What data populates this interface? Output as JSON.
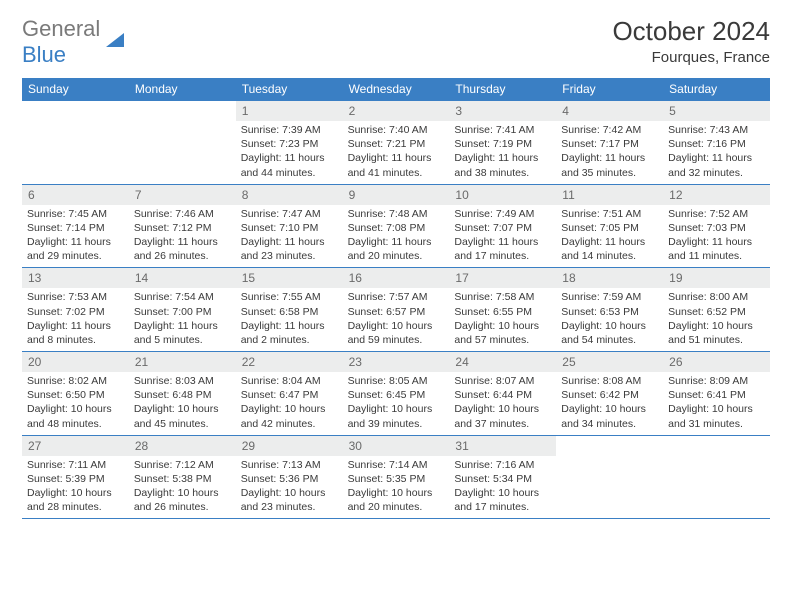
{
  "brand": {
    "text_a": "General",
    "text_b": "Blue"
  },
  "title": "October 2024",
  "location": "Fourques, France",
  "colors": {
    "header_bg": "#3a7fc4",
    "header_text": "#ffffff",
    "daynum_bg": "#eceded",
    "daynum_text": "#6a6a6a",
    "rule": "#3a7fc4"
  },
  "day_names": [
    "Sunday",
    "Monday",
    "Tuesday",
    "Wednesday",
    "Thursday",
    "Friday",
    "Saturday"
  ],
  "weeks": [
    [
      null,
      null,
      {
        "n": "1",
        "sunrise": "Sunrise: 7:39 AM",
        "sunset": "Sunset: 7:23 PM",
        "day": "Daylight: 11 hours and 44 minutes."
      },
      {
        "n": "2",
        "sunrise": "Sunrise: 7:40 AM",
        "sunset": "Sunset: 7:21 PM",
        "day": "Daylight: 11 hours and 41 minutes."
      },
      {
        "n": "3",
        "sunrise": "Sunrise: 7:41 AM",
        "sunset": "Sunset: 7:19 PM",
        "day": "Daylight: 11 hours and 38 minutes."
      },
      {
        "n": "4",
        "sunrise": "Sunrise: 7:42 AM",
        "sunset": "Sunset: 7:17 PM",
        "day": "Daylight: 11 hours and 35 minutes."
      },
      {
        "n": "5",
        "sunrise": "Sunrise: 7:43 AM",
        "sunset": "Sunset: 7:16 PM",
        "day": "Daylight: 11 hours and 32 minutes."
      }
    ],
    [
      {
        "n": "6",
        "sunrise": "Sunrise: 7:45 AM",
        "sunset": "Sunset: 7:14 PM",
        "day": "Daylight: 11 hours and 29 minutes."
      },
      {
        "n": "7",
        "sunrise": "Sunrise: 7:46 AM",
        "sunset": "Sunset: 7:12 PM",
        "day": "Daylight: 11 hours and 26 minutes."
      },
      {
        "n": "8",
        "sunrise": "Sunrise: 7:47 AM",
        "sunset": "Sunset: 7:10 PM",
        "day": "Daylight: 11 hours and 23 minutes."
      },
      {
        "n": "9",
        "sunrise": "Sunrise: 7:48 AM",
        "sunset": "Sunset: 7:08 PM",
        "day": "Daylight: 11 hours and 20 minutes."
      },
      {
        "n": "10",
        "sunrise": "Sunrise: 7:49 AM",
        "sunset": "Sunset: 7:07 PM",
        "day": "Daylight: 11 hours and 17 minutes."
      },
      {
        "n": "11",
        "sunrise": "Sunrise: 7:51 AM",
        "sunset": "Sunset: 7:05 PM",
        "day": "Daylight: 11 hours and 14 minutes."
      },
      {
        "n": "12",
        "sunrise": "Sunrise: 7:52 AM",
        "sunset": "Sunset: 7:03 PM",
        "day": "Daylight: 11 hours and 11 minutes."
      }
    ],
    [
      {
        "n": "13",
        "sunrise": "Sunrise: 7:53 AM",
        "sunset": "Sunset: 7:02 PM",
        "day": "Daylight: 11 hours and 8 minutes."
      },
      {
        "n": "14",
        "sunrise": "Sunrise: 7:54 AM",
        "sunset": "Sunset: 7:00 PM",
        "day": "Daylight: 11 hours and 5 minutes."
      },
      {
        "n": "15",
        "sunrise": "Sunrise: 7:55 AM",
        "sunset": "Sunset: 6:58 PM",
        "day": "Daylight: 11 hours and 2 minutes."
      },
      {
        "n": "16",
        "sunrise": "Sunrise: 7:57 AM",
        "sunset": "Sunset: 6:57 PM",
        "day": "Daylight: 10 hours and 59 minutes."
      },
      {
        "n": "17",
        "sunrise": "Sunrise: 7:58 AM",
        "sunset": "Sunset: 6:55 PM",
        "day": "Daylight: 10 hours and 57 minutes."
      },
      {
        "n": "18",
        "sunrise": "Sunrise: 7:59 AM",
        "sunset": "Sunset: 6:53 PM",
        "day": "Daylight: 10 hours and 54 minutes."
      },
      {
        "n": "19",
        "sunrise": "Sunrise: 8:00 AM",
        "sunset": "Sunset: 6:52 PM",
        "day": "Daylight: 10 hours and 51 minutes."
      }
    ],
    [
      {
        "n": "20",
        "sunrise": "Sunrise: 8:02 AM",
        "sunset": "Sunset: 6:50 PM",
        "day": "Daylight: 10 hours and 48 minutes."
      },
      {
        "n": "21",
        "sunrise": "Sunrise: 8:03 AM",
        "sunset": "Sunset: 6:48 PM",
        "day": "Daylight: 10 hours and 45 minutes."
      },
      {
        "n": "22",
        "sunrise": "Sunrise: 8:04 AM",
        "sunset": "Sunset: 6:47 PM",
        "day": "Daylight: 10 hours and 42 minutes."
      },
      {
        "n": "23",
        "sunrise": "Sunrise: 8:05 AM",
        "sunset": "Sunset: 6:45 PM",
        "day": "Daylight: 10 hours and 39 minutes."
      },
      {
        "n": "24",
        "sunrise": "Sunrise: 8:07 AM",
        "sunset": "Sunset: 6:44 PM",
        "day": "Daylight: 10 hours and 37 minutes."
      },
      {
        "n": "25",
        "sunrise": "Sunrise: 8:08 AM",
        "sunset": "Sunset: 6:42 PM",
        "day": "Daylight: 10 hours and 34 minutes."
      },
      {
        "n": "26",
        "sunrise": "Sunrise: 8:09 AM",
        "sunset": "Sunset: 6:41 PM",
        "day": "Daylight: 10 hours and 31 minutes."
      }
    ],
    [
      {
        "n": "27",
        "sunrise": "Sunrise: 7:11 AM",
        "sunset": "Sunset: 5:39 PM",
        "day": "Daylight: 10 hours and 28 minutes."
      },
      {
        "n": "28",
        "sunrise": "Sunrise: 7:12 AM",
        "sunset": "Sunset: 5:38 PM",
        "day": "Daylight: 10 hours and 26 minutes."
      },
      {
        "n": "29",
        "sunrise": "Sunrise: 7:13 AM",
        "sunset": "Sunset: 5:36 PM",
        "day": "Daylight: 10 hours and 23 minutes."
      },
      {
        "n": "30",
        "sunrise": "Sunrise: 7:14 AM",
        "sunset": "Sunset: 5:35 PM",
        "day": "Daylight: 10 hours and 20 minutes."
      },
      {
        "n": "31",
        "sunrise": "Sunrise: 7:16 AM",
        "sunset": "Sunset: 5:34 PM",
        "day": "Daylight: 10 hours and 17 minutes."
      },
      null,
      null
    ]
  ]
}
